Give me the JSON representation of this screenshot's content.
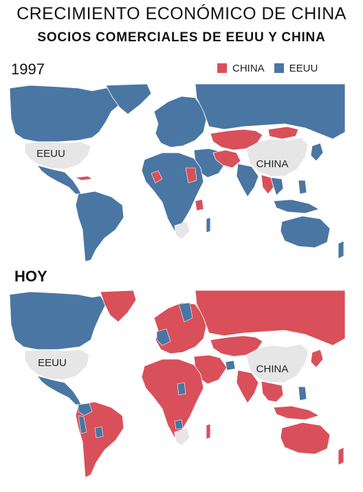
{
  "title": "CRECIMIENTO ECONÓMICO DE CHINA",
  "subtitle": "SOCIOS COMERCIALES DE EEUU Y CHINA",
  "colors": {
    "china": "#d9505a",
    "eeuu": "#4a76a4",
    "neutral": "#e6e6e6",
    "border": "#ffffff"
  },
  "legend": [
    {
      "label": "CHINA",
      "color": "#d9505a"
    },
    {
      "label": "EEUU",
      "color": "#4a76a4"
    }
  ],
  "maps": [
    {
      "label": "1997",
      "country_labels": {
        "usa": "EEUU",
        "china": "CHINA"
      }
    },
    {
      "label": "HOY",
      "country_labels": {
        "usa": "EEUU",
        "china": "CHINA"
      }
    }
  ]
}
